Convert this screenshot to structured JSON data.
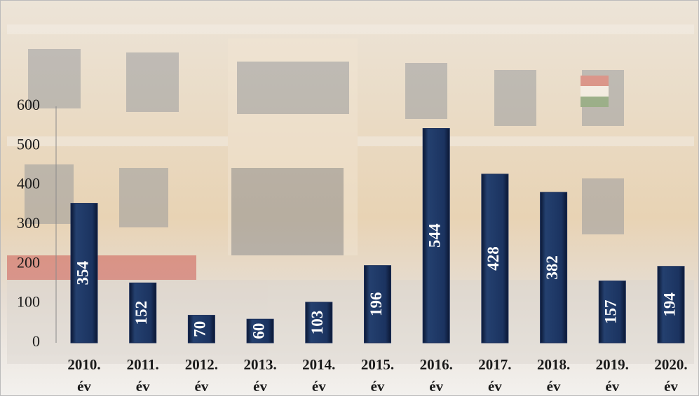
{
  "chart_data": {
    "type": "bar",
    "categories": [
      "2010. év",
      "2011. év",
      "2012. év",
      "2013. év",
      "2014. év",
      "2015. év",
      "2016. év",
      "2017. év",
      "2018. év",
      "2019. év",
      "2020. év"
    ],
    "values": [
      354,
      152,
      70,
      60,
      103,
      196,
      544,
      428,
      382,
      157,
      194
    ],
    "color": "#1b2f5a",
    "ylim": [
      0,
      600
    ],
    "yticks": [
      0,
      100,
      200,
      300,
      400,
      500,
      600
    ],
    "grid": false
  }
}
